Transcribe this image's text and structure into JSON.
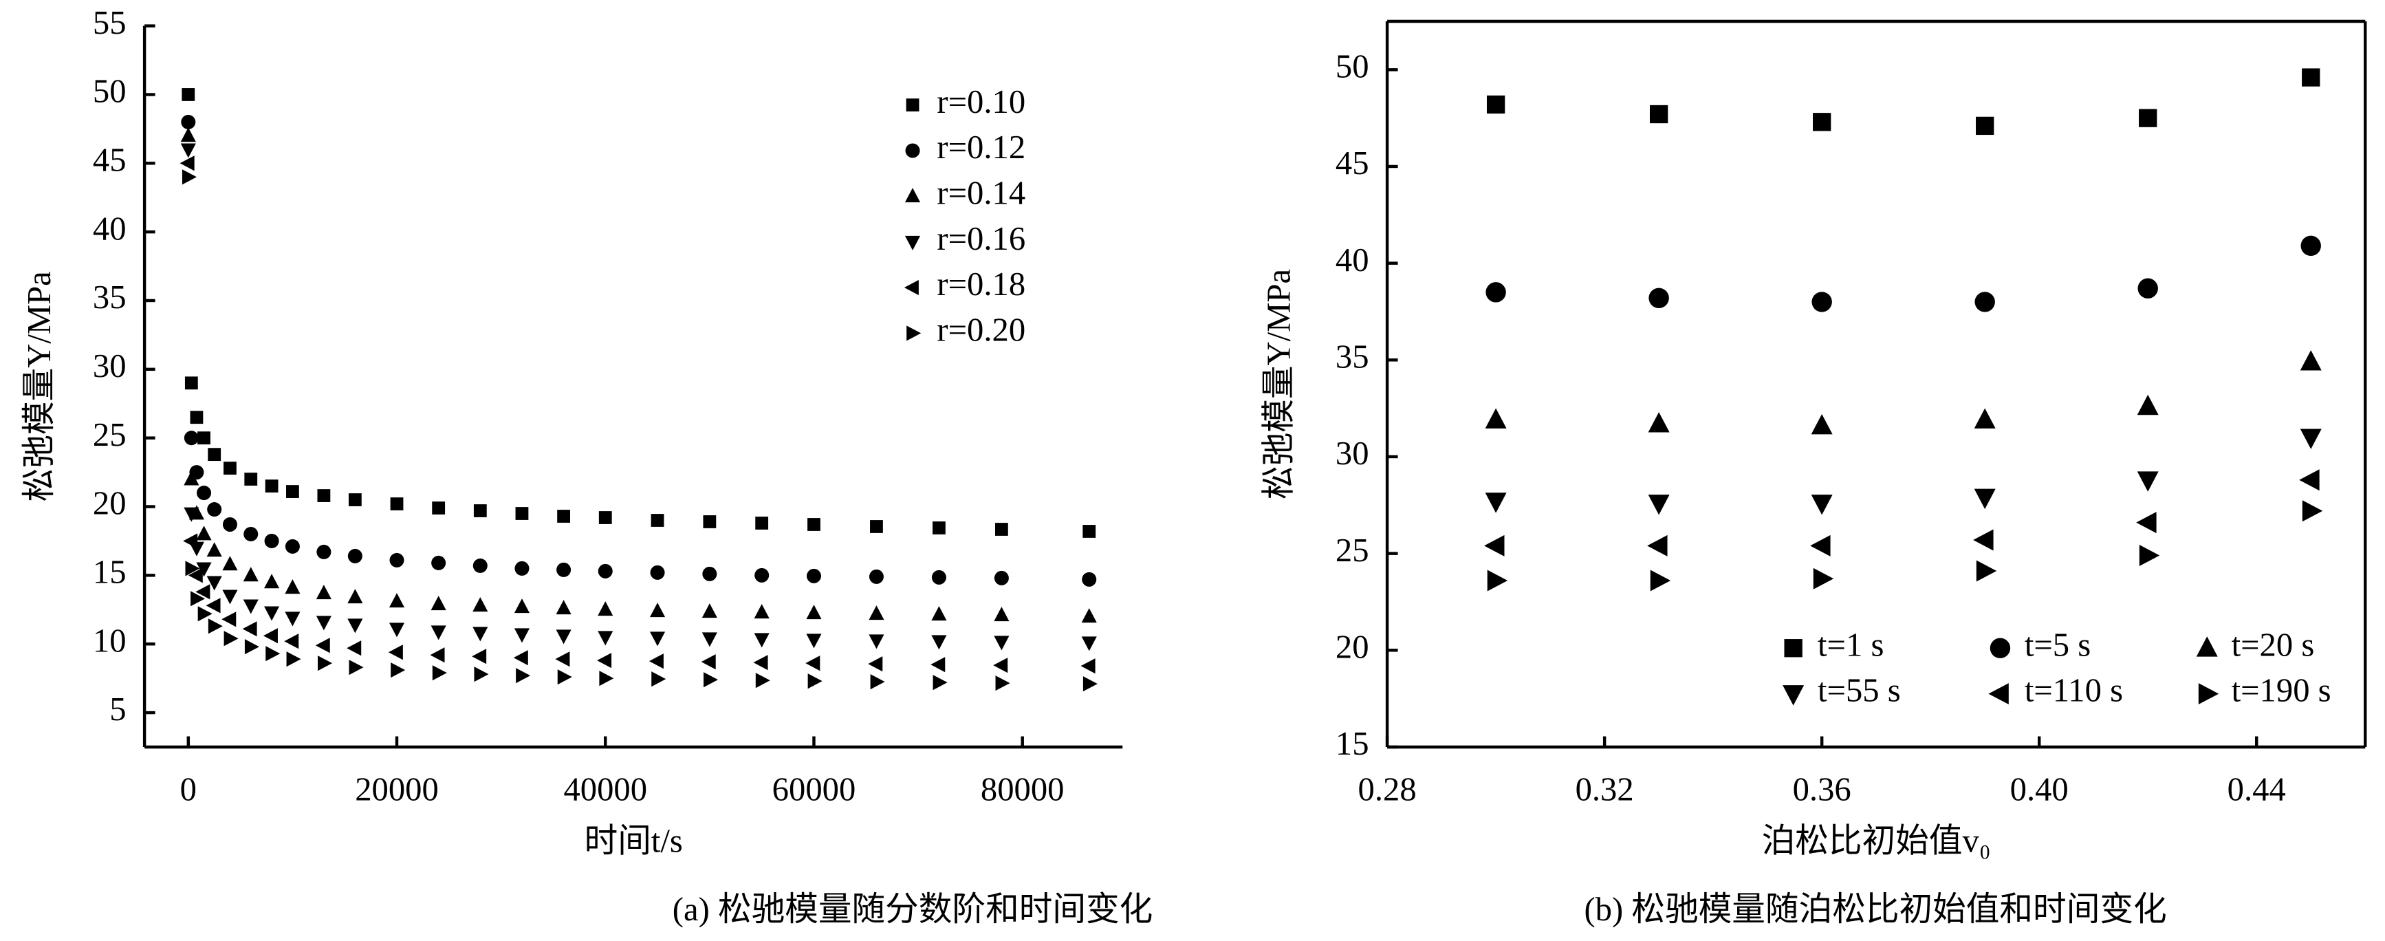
{
  "chart_data": [
    {
      "type": "scatter",
      "caption": "(a) 松驰模量随分数阶和时间变化",
      "xlabel": "时间t/s",
      "ylabel": "松弛模量Y/MPa",
      "x": [
        1,
        300,
        800,
        1500,
        2500,
        4000,
        6000,
        8000,
        10000,
        13000,
        16000,
        20000,
        24000,
        28000,
        32000,
        36000,
        40000,
        45000,
        50000,
        55000,
        60000,
        66000,
        72000,
        78000,
        86400
      ],
      "xlim": [
        -4200,
        89600
      ],
      "xticks": [
        0,
        20000,
        40000,
        60000,
        80000
      ],
      "ylim": [
        2.5,
        55
      ],
      "yticks": [
        5,
        10,
        15,
        20,
        25,
        30,
        35,
        40,
        45,
        50,
        55
      ],
      "legend": "upper right",
      "series": [
        {
          "name": "r=0.10",
          "color": "#000",
          "marker": "square",
          "values": [
            50,
            29,
            26.5,
            25,
            23.8,
            22.8,
            22.0,
            21.5,
            21.1,
            20.8,
            20.5,
            20.2,
            19.9,
            19.7,
            19.5,
            19.3,
            19.2,
            19.0,
            18.9,
            18.8,
            18.7,
            18.55,
            18.45,
            18.35,
            18.2
          ]
        },
        {
          "name": "r=0.12",
          "color": "#000",
          "marker": "circle",
          "values": [
            48,
            25,
            22.5,
            21,
            19.8,
            18.7,
            18.0,
            17.5,
            17.1,
            16.7,
            16.4,
            16.1,
            15.9,
            15.7,
            15.5,
            15.4,
            15.3,
            15.2,
            15.1,
            15.0,
            14.95,
            14.9,
            14.85,
            14.8,
            14.7
          ]
        },
        {
          "name": "r=0.14",
          "color": "#000",
          "marker": "triangle-up",
          "values": [
            47,
            22,
            19.5,
            18,
            16.8,
            15.8,
            15.0,
            14.5,
            14.1,
            13.7,
            13.4,
            13.1,
            12.9,
            12.8,
            12.7,
            12.6,
            12.5,
            12.4,
            12.35,
            12.3,
            12.25,
            12.2,
            12.15,
            12.1,
            12.0
          ]
        },
        {
          "name": "r=0.16",
          "color": "#000",
          "marker": "triangle-down",
          "values": [
            46,
            19.5,
            17,
            15.5,
            14.5,
            13.5,
            12.8,
            12.3,
            11.9,
            11.6,
            11.4,
            11.1,
            10.9,
            10.8,
            10.7,
            10.6,
            10.5,
            10.45,
            10.4,
            10.35,
            10.3,
            10.25,
            10.2,
            10.15,
            10.1
          ]
        },
        {
          "name": "r=0.18",
          "color": "#000",
          "marker": "triangle-left",
          "values": [
            45,
            17.5,
            15,
            13.8,
            12.8,
            11.8,
            11.1,
            10.6,
            10.2,
            9.9,
            9.7,
            9.4,
            9.2,
            9.1,
            9.0,
            8.9,
            8.8,
            8.75,
            8.7,
            8.65,
            8.6,
            8.55,
            8.5,
            8.45,
            8.4
          ]
        },
        {
          "name": "r=0.20",
          "color": "#000",
          "marker": "triangle-right",
          "values": [
            44,
            15.5,
            13.3,
            12.2,
            11.3,
            10.4,
            9.8,
            9.3,
            8.9,
            8.6,
            8.3,
            8.1,
            7.9,
            7.8,
            7.7,
            7.6,
            7.5,
            7.45,
            7.4,
            7.35,
            7.3,
            7.25,
            7.2,
            7.15,
            7.1
          ]
        }
      ]
    },
    {
      "type": "scatter",
      "caption": "(b) 松驰模量随泊松比初始值和时间变化",
      "xlabel": "泊松比初始值v₀",
      "ylabel": "松弛模量Y/MPa",
      "x": [
        0.3,
        0.33,
        0.36,
        0.39,
        0.42,
        0.45
      ],
      "xlim": [
        0.28,
        0.46
      ],
      "xticks": [
        0.28,
        0.32,
        0.36,
        {
          "value": 0.4,
          "label": "0.40"
        },
        0.44
      ],
      "ylim": [
        15,
        52.5
      ],
      "yticks": [
        15,
        20,
        25,
        30,
        35,
        40,
        45,
        50
      ],
      "legend": "lower right",
      "series": [
        {
          "name": "t=1 s",
          "color": "#000",
          "marker": "square",
          "values": [
            48.2,
            47.7,
            47.3,
            47.1,
            47.5,
            49.6
          ]
        },
        {
          "name": "t=5 s",
          "color": "#000",
          "marker": "circle",
          "values": [
            38.5,
            38.2,
            38.0,
            38.0,
            38.7,
            40.9
          ]
        },
        {
          "name": "t=20 s",
          "color": "#000",
          "marker": "triangle-up",
          "values": [
            31.9,
            31.7,
            31.6,
            31.9,
            32.6,
            34.9
          ]
        },
        {
          "name": "t=55 s",
          "color": "#000",
          "marker": "triangle-down",
          "values": [
            27.7,
            27.6,
            27.6,
            27.9,
            28.8,
            31.0
          ]
        },
        {
          "name": "t=110 s",
          "color": "#000",
          "marker": "triangle-left",
          "values": [
            25.4,
            25.4,
            25.4,
            25.7,
            26.6,
            28.8
          ]
        },
        {
          "name": "t=190 s",
          "color": "#000",
          "marker": "triangle-right",
          "values": [
            23.6,
            23.6,
            23.7,
            24.1,
            24.9,
            27.2
          ]
        }
      ]
    }
  ]
}
